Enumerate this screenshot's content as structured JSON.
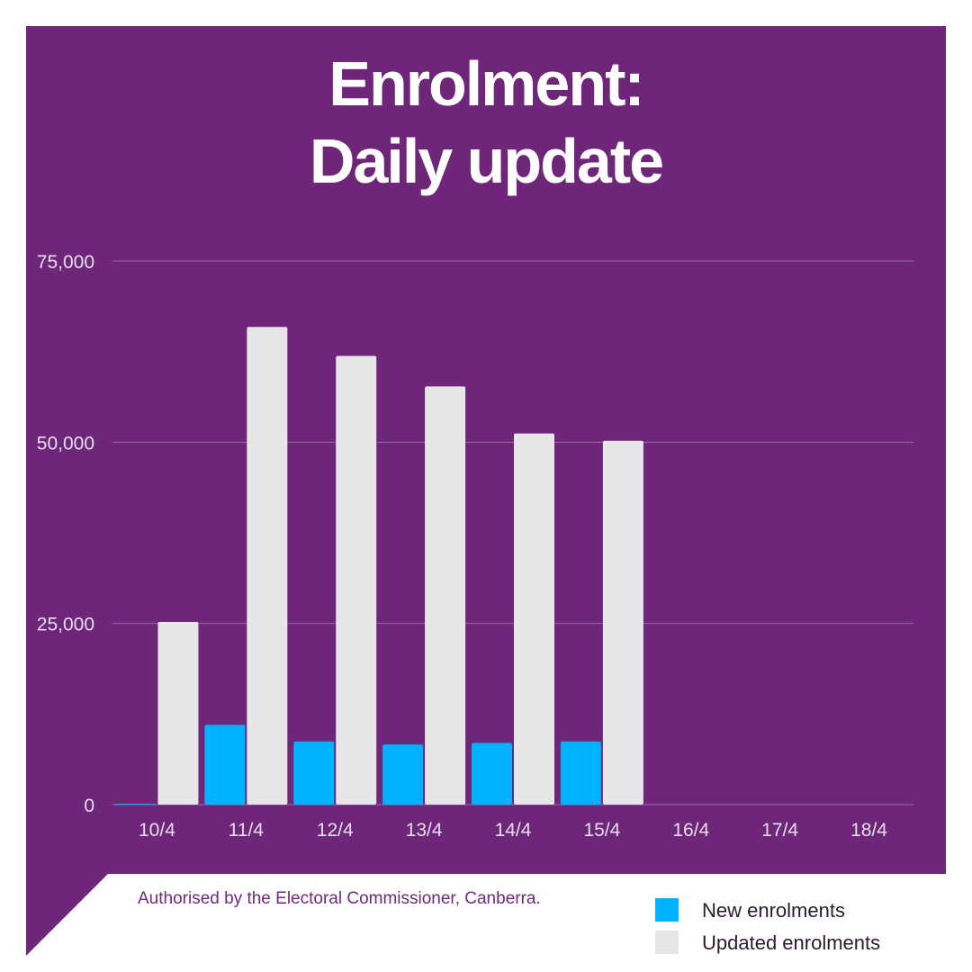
{
  "colors": {
    "panel": "#6d2678",
    "grid": "#9a6aa6",
    "new": "#00b2ff",
    "updated": "#e6e6e9",
    "footer_text": "#6d2a7a"
  },
  "footer": {
    "authorisation": "Authorised by the Electoral Commissioner, Canberra."
  },
  "chart_data": {
    "type": "bar",
    "title_lines": [
      "Enrolment:",
      "Daily update"
    ],
    "xlabel": "",
    "ylabel": "",
    "categories": [
      "10/4",
      "11/4",
      "12/4",
      "13/4",
      "14/4",
      "15/4",
      "16/4",
      "17/4",
      "18/4"
    ],
    "series": [
      {
        "name": "New enrolments",
        "values": [
          100,
          11000,
          8700,
          8300,
          8500,
          8700,
          null,
          null,
          null
        ]
      },
      {
        "name": "Updated enrolments",
        "values": [
          25200,
          65900,
          61900,
          57700,
          51200,
          50200,
          null,
          null,
          null
        ]
      }
    ],
    "ylim": [
      0,
      75000
    ],
    "yticks": [
      "0",
      "25,000",
      "50,000",
      "75,000"
    ],
    "ytick_values": [
      0,
      25000,
      50000,
      75000
    ],
    "grid": true,
    "legend_position": "bottom-right"
  }
}
